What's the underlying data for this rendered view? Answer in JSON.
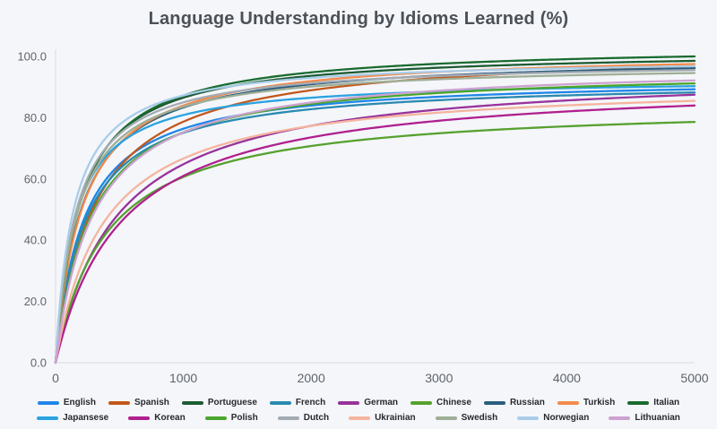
{
  "chart": {
    "title": "Language Understanding by Idioms Learned (%)",
    "background_color": "#f4f6fa",
    "title_color": "#4b5157",
    "axis_line_color": "#d7dbe2",
    "tick_label_color": "#5f646b"
  },
  "chart_data": {
    "type": "line",
    "title": "Language Understanding by Idioms Learned (%)",
    "xlabel": "",
    "ylabel": "",
    "xlim": [
      0,
      5000
    ],
    "ylim": [
      0,
      100
    ],
    "grid": false,
    "legend_position": "bottom",
    "x_tick_values": [
      0,
      1000,
      2000,
      3000,
      4000,
      5000
    ],
    "x_tick_labels": [
      "0",
      "1000",
      "2000",
      "3000",
      "4000",
      "5000"
    ],
    "y_tick_values": [
      0,
      20,
      40,
      60,
      80,
      100
    ],
    "y_tick_labels": [
      "0.0",
      "20.0",
      "40.0",
      "60.0",
      "80.0",
      "100.0"
    ],
    "x": [
      0,
      1000,
      2000,
      3000,
      4000,
      5000
    ],
    "curve_model": "y = A * x / (x + k), saturating growth",
    "series": [
      {
        "name": "English",
        "color": "#1e86e8",
        "values": [
          0,
          76.4,
          84.0,
          86.9,
          88.4,
          89.3
        ],
        "model": {
          "A": 93.2,
          "k": 220
        }
      },
      {
        "name": "Spanish",
        "color": "#c3571c",
        "values": [
          0,
          78.7,
          89.0,
          93.0,
          95.2,
          96.5
        ],
        "model": {
          "A": 102.3,
          "k": 300
        }
      },
      {
        "name": "Portuguese",
        "color": "#1d5c33",
        "values": [
          0,
          86.6,
          93.7,
          96.4,
          97.8,
          98.6
        ],
        "model": {
          "A": 102.1,
          "k": 180
        }
      },
      {
        "name": "French",
        "color": "#2a8ab0",
        "values": [
          0,
          75.0,
          82.7,
          85.7,
          87.1,
          88.2
        ],
        "model": {
          "A": 92.3,
          "k": 230
        }
      },
      {
        "name": "German",
        "color": "#98339c",
        "values": [
          0,
          64.8,
          77.3,
          82.7,
          85.6,
          87.5
        ],
        "model": {
          "A": 95.9,
          "k": 480
        }
      },
      {
        "name": "Chinese",
        "color": "#56a12f",
        "values": [
          0,
          60.6,
          70.7,
          74.9,
          77.2,
          78.6
        ],
        "model": {
          "A": 84.9,
          "k": 400
        }
      },
      {
        "name": "Russian",
        "color": "#2b5d7d",
        "values": [
          0,
          83.4,
          91.0,
          93.8,
          95.3,
          96.2
        ],
        "model": {
          "A": 100.0,
          "k": 200
        }
      },
      {
        "name": "Turkish",
        "color": "#f28b4b",
        "values": [
          0,
          84.0,
          91.9,
          94.9,
          96.5,
          97.5
        ],
        "model": {
          "A": 101.6,
          "k": 210
        }
      },
      {
        "name": "Italian",
        "color": "#1a6b2f",
        "values": [
          0,
          87.2,
          94.8,
          97.6,
          99.1,
          100.0
        ],
        "model": {
          "A": 103.8,
          "k": 190
        }
      },
      {
        "name": "Japansese",
        "color": "#2aa3e0",
        "values": [
          0,
          80.9,
          86.5,
          88.6,
          89.6,
          90.3
        ],
        "model": {
          "A": 93.0,
          "k": 150
        }
      },
      {
        "name": "Korean",
        "color": "#b0208e",
        "values": [
          0,
          61.0,
          73.6,
          79.0,
          82.0,
          84.0
        ],
        "model": {
          "A": 92.7,
          "k": 520
        }
      },
      {
        "name": "Polish",
        "color": "#4aa62c",
        "values": [
          0,
          75.2,
          84.5,
          88.1,
          90.0,
          91.2
        ],
        "model": {
          "A": 96.3,
          "k": 280
        }
      },
      {
        "name": "Dutch",
        "color": "#a4abb2",
        "values": [
          0,
          85.0,
          91.3,
          93.6,
          94.8,
          95.5
        ],
        "model": {
          "A": 98.6,
          "k": 160
        }
      },
      {
        "name": "Ukrainian",
        "color": "#f5b49e",
        "values": [
          0,
          66.7,
          77.3,
          81.7,
          84.0,
          85.5
        ],
        "model": {
          "A": 92.0,
          "k": 380
        }
      },
      {
        "name": "Swedish",
        "color": "#9fae96",
        "values": [
          0,
          83.6,
          90.1,
          92.6,
          93.8,
          94.6
        ],
        "model": {
          "A": 97.8,
          "k": 170
        }
      },
      {
        "name": "Norwegian",
        "color": "#a9cde9",
        "values": [
          0,
          87.3,
          93.0,
          95.1,
          96.1,
          96.8
        ],
        "model": {
          "A": 99.5,
          "k": 140
        }
      },
      {
        "name": "Lithuanian",
        "color": "#cda2d0",
        "values": [
          0,
          75.2,
          85.0,
          88.8,
          90.9,
          92.2
        ],
        "model": {
          "A": 97.7,
          "k": 300
        }
      }
    ],
    "legend_rows": [
      [
        "English",
        "Spanish",
        "Portuguese",
        "French",
        "German",
        "Chinese",
        "Russian",
        "Turkish",
        "Italian"
      ],
      [
        "Japansese",
        "Korean",
        "Polish",
        "Dutch",
        "Ukrainian",
        "Swedish",
        "Norwegian",
        "Lithuanian"
      ]
    ]
  }
}
